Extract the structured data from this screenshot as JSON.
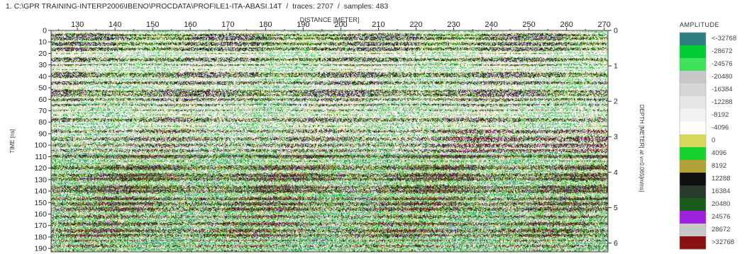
{
  "header": {
    "index": "1.",
    "path": "C:\\GPR TRAINING-INTERP2006\\IBENO\\PROCDATA\\PROFILE1-ITA-ABASI.14T",
    "traces_text": "traces: 2707",
    "samples_text": "samples: 483"
  },
  "chart_data": {
    "type": "heatmap",
    "title": "",
    "xlabel": "DISTANCE [METER]",
    "ylabel": "TIME [ns]",
    "y2label": "DEPTH [METER] at v=0.065[m/ns]",
    "xlim": [
      123,
      271
    ],
    "ylim": [
      0,
      193
    ],
    "y2lim": [
      0,
      6.25
    ],
    "x_ticks": [
      130,
      140,
      150,
      160,
      170,
      180,
      190,
      200,
      210,
      220,
      230,
      240,
      250,
      260,
      270
    ],
    "y_ticks": [
      0,
      10,
      20,
      30,
      40,
      50,
      60,
      70,
      80,
      90,
      100,
      110,
      120,
      130,
      140,
      150,
      160,
      170,
      180,
      190
    ],
    "y2_ticks": [
      0,
      1,
      2,
      3,
      4,
      5,
      6
    ],
    "traces": 2707,
    "samples": 483,
    "colorbar": {
      "title": "AMPLITUDE",
      "labels": [
        "<-32768",
        "-28672",
        "-24576",
        "-20480",
        "-16384",
        "-12288",
        "-8192",
        "-4096",
        "0",
        "4096",
        "8192",
        "12288",
        "16384",
        "20480",
        "24576",
        "28672",
        ">32768"
      ],
      "colors": [
        "#2f7f80",
        "#00cc33",
        "#3fe35a",
        "#c8c8c8",
        "#d6d6d6",
        "#e6e6e6",
        "#f2f2f2",
        "#ffffff",
        "#d8d85a",
        "#17d12c",
        "#b0a235",
        "#101010",
        "#2a3a2a",
        "#1a5a1a",
        "#a020e0",
        "#c8c8c8",
        "#8b1010"
      ]
    },
    "grid": false,
    "legend": "right"
  }
}
